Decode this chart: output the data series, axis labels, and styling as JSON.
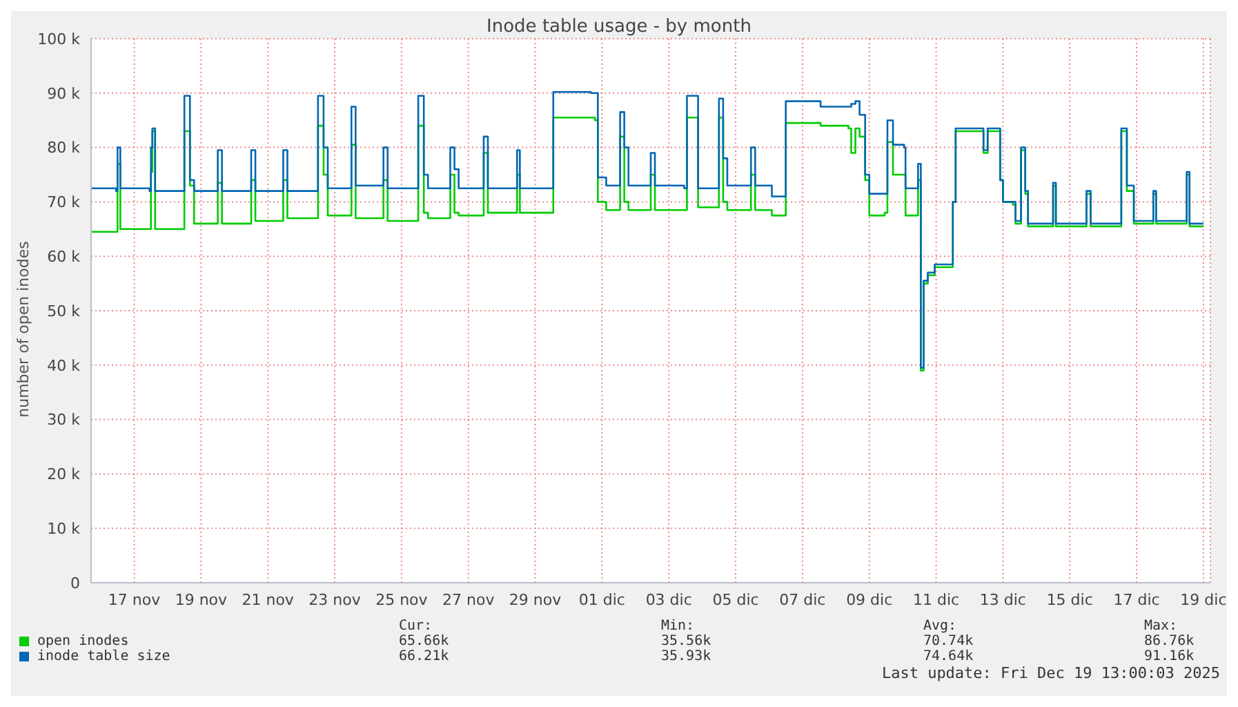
{
  "chart_data": {
    "type": "step",
    "title": "Inode table usage - by month",
    "ylabel": "number of open inodes",
    "x": [
      "2025-11-15T17:00",
      "2025-11-16T11:00",
      "2025-11-16T12:00",
      "2025-11-16T14:00",
      "2025-11-17T11:00",
      "2025-11-17T12:00",
      "2025-11-17T13:00",
      "2025-11-17T15:00",
      "2025-11-18T09:00",
      "2025-11-18T12:00",
      "2025-11-18T16:00",
      "2025-11-18T19:00",
      "2025-11-19T10:00",
      "2025-11-19T12:00",
      "2025-11-19T15:00",
      "2025-11-20T12:00",
      "2025-11-20T15:00",
      "2025-11-21T11:00",
      "2025-11-21T14:00",
      "2025-11-22T12:00",
      "2025-11-22T16:00",
      "2025-11-22T19:00",
      "2025-11-23T12:00",
      "2025-11-23T15:00",
      "2025-11-24T11:00",
      "2025-11-24T14:00",
      "2025-11-25T12:00",
      "2025-11-25T16:00",
      "2025-11-25T19:00",
      "2025-11-26T11:00",
      "2025-11-26T14:00",
      "2025-11-26T17:00",
      "2025-11-27T11:00",
      "2025-11-27T14:00",
      "2025-11-28T11:00",
      "2025-11-28T13:00",
      "2025-11-29T11:00",
      "2025-11-29T13:00",
      "2025-11-30T16:00",
      "2025-11-30T19:00",
      "2025-11-30T21:00",
      "2025-12-01T03:00",
      "2025-12-01T13:00",
      "2025-12-01T16:00",
      "2025-12-01T19:00",
      "2025-12-02T11:00",
      "2025-12-02T14:00",
      "2025-12-03T11:00",
      "2025-12-03T13:00",
      "2025-12-03T19:00",
      "2025-12-03T21:00",
      "2025-12-04T12:00",
      "2025-12-04T15:00",
      "2025-12-04T18:00",
      "2025-12-05T11:00",
      "2025-12-05T14:00",
      "2025-12-06T02:00",
      "2025-12-06T11:00",
      "2025-12-06T12:00",
      "2025-12-07T08:00",
      "2025-12-07T13:00",
      "2025-12-08T09:00",
      "2025-12-08T11:00",
      "2025-12-08T14:00",
      "2025-12-08T17:00",
      "2025-12-08T21:00",
      "2025-12-09T00:00",
      "2025-12-09T11:00",
      "2025-12-09T13:00",
      "2025-12-09T17:00",
      "2025-12-10T01:00",
      "2025-12-10T02:00",
      "2025-12-10T10:00",
      "2025-12-10T11:00",
      "2025-12-10T13:00",
      "2025-12-10T15:00",
      "2025-12-10T18:00",
      "2025-12-10T23:00",
      "2025-12-11T10:00",
      "2025-12-11T12:00",
      "2025-12-11T14:00",
      "2025-12-12T08:00",
      "2025-12-12T10:00",
      "2025-12-12T13:00",
      "2025-12-12T20:00",
      "2025-12-12T22:00",
      "2025-12-13T00:00",
      "2025-12-13T07:00",
      "2025-12-13T09:00",
      "2025-12-13T13:00",
      "2025-12-13T16:00",
      "2025-12-13T18:00",
      "2025-12-14T10:00",
      "2025-12-14T12:00",
      "2025-12-14T14:00",
      "2025-12-15T11:00",
      "2025-12-15T12:00",
      "2025-12-15T15:00",
      "2025-12-16T12:00",
      "2025-12-16T13:00",
      "2025-12-16T17:00",
      "2025-12-16T22:00",
      "2025-12-17T10:00",
      "2025-12-17T12:00",
      "2025-12-17T14:00",
      "2025-12-18T09:00",
      "2025-12-18T12:00",
      "2025-12-18T14:00",
      "2025-12-19T00:00"
    ],
    "series": [
      {
        "name": "open inodes",
        "color": "#00cc00",
        "values": [
          64500,
          64500,
          77000,
          65000,
          65000,
          75500,
          83000,
          65000,
          65000,
          83000,
          73000,
          66000,
          66000,
          73500,
          66000,
          74000,
          66500,
          74000,
          67000,
          84000,
          75000,
          67500,
          80500,
          67000,
          74000,
          66500,
          84000,
          68000,
          67000,
          75000,
          68000,
          67500,
          79000,
          68000,
          75000,
          68000,
          68000,
          85500,
          85500,
          85000,
          70000,
          68500,
          82000,
          70000,
          68500,
          75000,
          68500,
          68500,
          85500,
          85500,
          69000,
          85500,
          70000,
          68500,
          75000,
          68500,
          67500,
          67500,
          84500,
          84500,
          84000,
          83500,
          79000,
          83500,
          82000,
          74000,
          67500,
          68000,
          81000,
          75000,
          75000,
          67500,
          67500,
          74000,
          39000,
          55000,
          56500,
          58000,
          58000,
          70000,
          83000,
          83000,
          79000,
          83000,
          83000,
          74000,
          70000,
          69500,
          66000,
          79500,
          71500,
          65500,
          65500,
          73000,
          65500,
          65500,
          71500,
          65500,
          65500,
          83000,
          72000,
          66000,
          66000,
          71500,
          66000,
          66000,
          75000,
          65500,
          65500
        ]
      },
      {
        "name": "inode table size",
        "color": "#0066b3",
        "values": [
          72500,
          72000,
          80000,
          72500,
          72000,
          80000,
          83500,
          72000,
          72000,
          89500,
          74000,
          72000,
          72000,
          79500,
          72000,
          79500,
          72000,
          79500,
          72000,
          89500,
          80000,
          72500,
          87500,
          73000,
          80000,
          72500,
          89500,
          75000,
          72500,
          80000,
          76000,
          72500,
          82000,
          72500,
          79500,
          72500,
          72500,
          90200,
          90000,
          90000,
          74500,
          73000,
          86500,
          80000,
          73000,
          79000,
          73000,
          72500,
          89500,
          89500,
          72500,
          89000,
          78000,
          73000,
          80000,
          73000,
          71000,
          71000,
          88500,
          88500,
          87500,
          87500,
          88000,
          88500,
          86000,
          75000,
          71500,
          71500,
          85000,
          80500,
          80000,
          72500,
          72500,
          77000,
          39500,
          55500,
          57000,
          58500,
          58500,
          70000,
          83500,
          83500,
          79500,
          83500,
          83500,
          74000,
          70000,
          70000,
          66500,
          80000,
          72000,
          66000,
          66000,
          73500,
          66000,
          66000,
          72000,
          66000,
          66000,
          83500,
          73000,
          66500,
          66500,
          72000,
          66500,
          66500,
          75500,
          66000,
          66000
        ]
      }
    ],
    "xlim": [
      "2025-11-15T17:00",
      "2025-12-19T05:00"
    ],
    "xticks": [
      {
        "value": "2025-11-17",
        "label": "17 nov"
      },
      {
        "value": "2025-11-19",
        "label": "19 nov"
      },
      {
        "value": "2025-11-21",
        "label": "21 nov"
      },
      {
        "value": "2025-11-23",
        "label": "23 nov"
      },
      {
        "value": "2025-11-25",
        "label": "25 nov"
      },
      {
        "value": "2025-11-27",
        "label": "27 nov"
      },
      {
        "value": "2025-11-29",
        "label": "29 nov"
      },
      {
        "value": "2025-12-01",
        "label": "01 dic"
      },
      {
        "value": "2025-12-03",
        "label": "03 dic"
      },
      {
        "value": "2025-12-05",
        "label": "05 dic"
      },
      {
        "value": "2025-12-07",
        "label": "07 dic"
      },
      {
        "value": "2025-12-09",
        "label": "09 dic"
      },
      {
        "value": "2025-12-11",
        "label": "11 dic"
      },
      {
        "value": "2025-12-13",
        "label": "13 dic"
      },
      {
        "value": "2025-12-15",
        "label": "15 dic"
      },
      {
        "value": "2025-12-17",
        "label": "17 dic"
      },
      {
        "value": "2025-12-19",
        "label": "19 dic"
      }
    ],
    "ylim": [
      0,
      100000
    ],
    "yticks": [
      0,
      {
        "value": 10000,
        "label": "10 k"
      },
      {
        "value": 20000,
        "label": "20 k"
      },
      {
        "value": 30000,
        "label": "30 k"
      },
      {
        "value": 40000,
        "label": "40 k"
      },
      {
        "value": 50000,
        "label": "50 k"
      },
      {
        "value": 60000,
        "label": "60 k"
      },
      {
        "value": 70000,
        "label": "70 k"
      },
      {
        "value": 80000,
        "label": "80 k"
      },
      {
        "value": 90000,
        "label": "90 k"
      },
      {
        "value": 100000,
        "label": "100 k"
      }
    ],
    "grid": true,
    "legend": "bottom",
    "marker": "none",
    "line_style": "solid",
    "annotations": [
      "Cur:",
      "Min:",
      "Avg:",
      "Max:",
      "65.66k",
      "35.56k",
      "70.74k",
      "86.76k",
      "66.21k",
      "35.93k",
      "74.64k",
      "91.16k",
      "Last update: Fri Dec 19 13:00:03 2025"
    ]
  }
}
